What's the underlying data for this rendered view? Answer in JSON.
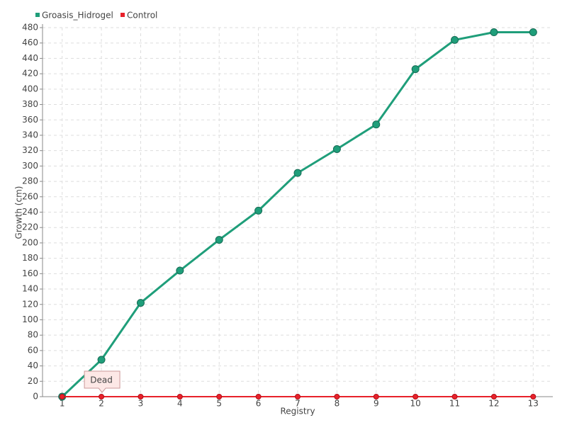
{
  "chart_data": {
    "type": "line",
    "x_label": "Registry",
    "y_label": "Growth (cm)",
    "categories": [
      "1",
      "2",
      "3",
      "4",
      "5",
      "6",
      "7",
      "8",
      "9",
      "10",
      "11",
      "12",
      "13"
    ],
    "series": [
      {
        "name": "Groasis_Hidrogel",
        "color": "#1f9e7a",
        "values": [
          0,
          48,
          122,
          164,
          204,
          242,
          291,
          322,
          354,
          426,
          464,
          474,
          474
        ]
      },
      {
        "name": "Control",
        "color": "#e8212a",
        "values": [
          0,
          0,
          0,
          0,
          0,
          0,
          0,
          0,
          0,
          0,
          0,
          0,
          0
        ]
      }
    ],
    "ylim": [
      0,
      480
    ],
    "yticks": [
      0,
      20,
      40,
      60,
      80,
      100,
      120,
      140,
      160,
      180,
      200,
      220,
      240,
      260,
      280,
      300,
      320,
      340,
      360,
      380,
      400,
      420,
      440,
      460,
      480
    ],
    "grid": true,
    "legend": "top-left",
    "annotation": {
      "text": "Dead",
      "x": "2"
    }
  }
}
